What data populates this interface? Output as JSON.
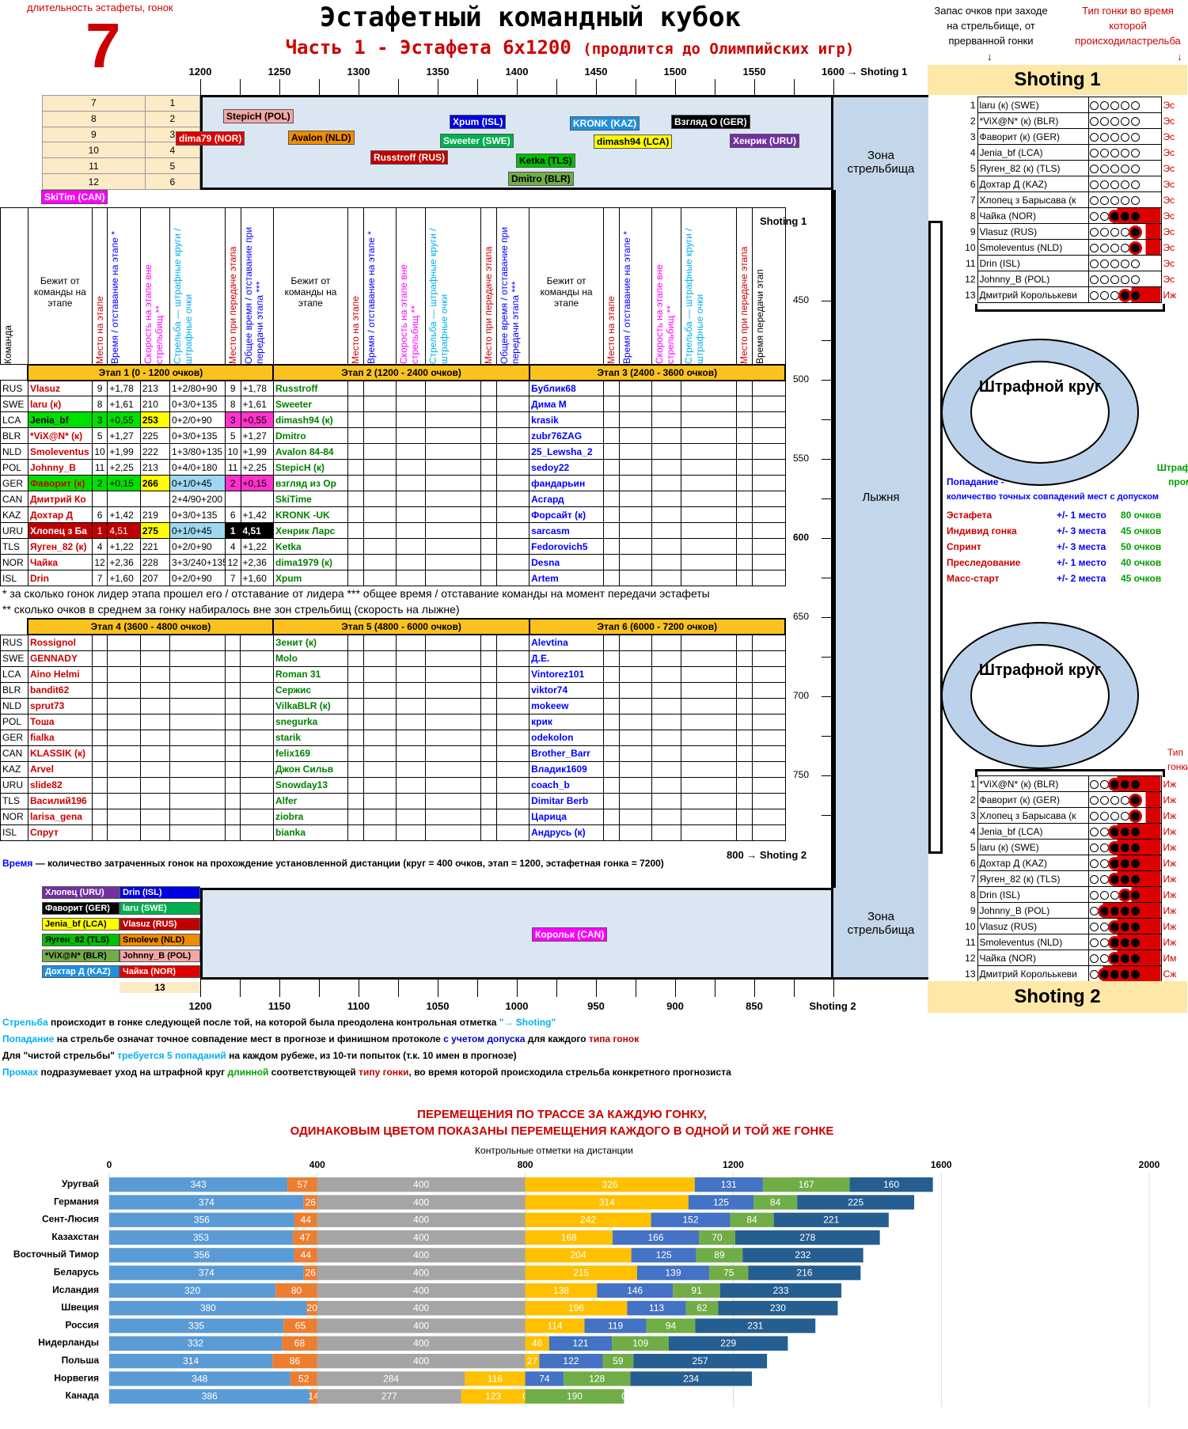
{
  "header": {
    "left_caption": "длительность эстафеты, гонок",
    "big_number": "7",
    "title": "Эстафетный командный кубок",
    "subtitle": "Часть 1 - Эстафета 6х1200",
    "subtitle_note": "(продлится до Олимпийских игр)",
    "right1": "Запас очков при заходе на стрельбище, от прерванной гонки",
    "right2": "Тип гонки во время которой происходиластрельба"
  },
  "top_scale": [
    "1200",
    "1250",
    "1300",
    "1350",
    "1400",
    "1450",
    "1500",
    "1550",
    "1600 → Shoting 1"
  ],
  "bot_scale": [
    "1200",
    "1150",
    "1100",
    "1050",
    "1000",
    "950",
    "900",
    "850",
    "Shoting 2"
  ],
  "left_grid_top": [
    [
      "7",
      "1"
    ],
    [
      "8",
      "2"
    ],
    [
      "9",
      "3"
    ],
    [
      "10",
      "4"
    ],
    [
      "11",
      "5"
    ],
    [
      "12",
      "6"
    ]
  ],
  "top_tags": [
    {
      "t": "StepicH (POL)",
      "bg": "#f4a6a6",
      "c": "#000"
    },
    {
      "t": "dima79 (NOR)",
      "bg": "#e00000",
      "c": "#fff"
    },
    {
      "t": "Avalon (NLD)",
      "bg": "#f08c00",
      "c": "#000"
    },
    {
      "t": "Russtroff (RUS)",
      "bg": "#c00000",
      "c": "#fff"
    },
    {
      "t": "Xpum (ISL)",
      "bg": "#0000e0",
      "c": "#fff"
    },
    {
      "t": "Sweeter (SWE)",
      "bg": "#00b050",
      "c": "#fff"
    },
    {
      "t": "KRONK (KAZ)",
      "bg": "#1e90e0",
      "c": "#fff"
    },
    {
      "t": "Ketka (TLS)",
      "bg": "#00c000",
      "c": "#000"
    },
    {
      "t": "dimash94 (LCA)",
      "bg": "#ffff00",
      "c": "#000"
    },
    {
      "t": "Dmitro (BLR)",
      "bg": "#70ad47",
      "c": "#000"
    },
    {
      "t": "Взгляд О (GER)",
      "bg": "#000",
      "c": "#fff"
    },
    {
      "t": "Хенрик (URU)",
      "bg": "#7030a0",
      "c": "#fff"
    },
    {
      "t": "SkiTim (CAN)",
      "bg": "#ff00ff",
      "c": "#fff"
    }
  ],
  "zone_labels": {
    "top": "Зона стрельбища",
    "mid": "Лыжня",
    "bot": "Зона стрельбища",
    "shoting1": "Shoting 1",
    "shoting2": "800 → Shoting 2"
  },
  "col_headers": {
    "team": "Команда",
    "runner": "Бежит от команды на этапе",
    "place": "Место на этапе",
    "time": "Время / отставание на этапе *",
    "speed": "Скорость на этапе вне стрельбищ **",
    "shoot": "Стрельба — штрафные круги / штрафные очки",
    "place_pass": "Место при передаче этапа",
    "total": "Общее время / отставание при передачи этапа ***",
    "total2": "Время передачи этап"
  },
  "stages": [
    "Этап 1  (0 - 1200 очков)",
    "Этап 2  (1200 - 2400 очков)",
    "Этап 3  (2400 - 3600 очков)",
    "Этап 4  (3600 - 4800 очков)",
    "Этап 5  (4800 - 6000 очков)",
    "Этап 6  (6000 - 7200 очков)"
  ],
  "teams": [
    "RUS",
    "SWE",
    "LCA",
    "BLR",
    "NLD",
    "POL",
    "GER",
    "CAN",
    "KAZ",
    "URU",
    "TLS",
    "NOR",
    "ISL"
  ],
  "stage1": [
    [
      "Vlasuz",
      "9",
      "+1,78",
      "213",
      "1+2/80+90",
      "9",
      "+1,78"
    ],
    [
      "laru (к)",
      "8",
      "+1,61",
      "210",
      "0+3/0+135",
      "8",
      "+1,61"
    ],
    [
      "Jenia_bf",
      "3",
      "+0,55",
      "253",
      "0+2/0+90",
      "3",
      "+0,55"
    ],
    [
      "*ViX@N* (к)",
      "5",
      "+1,27",
      "225",
      "0+3/0+135",
      "5",
      "+1,27"
    ],
    [
      "Smoleventus",
      "10",
      "+1,99",
      "222",
      "1+3/80+135",
      "10",
      "+1,99"
    ],
    [
      "Johnny_B",
      "11",
      "+2,25",
      "213",
      "0+4/0+180",
      "11",
      "+2,25"
    ],
    [
      "Фаворит (к)",
      "2",
      "+0,15",
      "266",
      "0+1/0+45",
      "2",
      "+0,15"
    ],
    [
      "Дмитрий Ко",
      "",
      "",
      "",
      "2+4/90+200",
      "",
      ""
    ],
    [
      "Дохтар Д",
      "6",
      "+1,42",
      "219",
      "0+3/0+135",
      "6",
      "+1,42"
    ],
    [
      "Хлопец з Ба",
      "1",
      "4,51",
      "275",
      "0+1/0+45",
      "1",
      "4,51"
    ],
    [
      "Яуген_82 (к)",
      "4",
      "+1,22",
      "221",
      "0+2/0+90",
      "4",
      "+1,22"
    ],
    [
      "Чайка",
      "12",
      "+2,36",
      "228",
      "3+3/240+135",
      "12",
      "+2,36"
    ],
    [
      "Drin",
      "7",
      "+1,60",
      "207",
      "0+2/0+90",
      "7",
      "+1,60"
    ]
  ],
  "stage2": [
    "Russtroff",
    "Sweeter",
    "dimash94 (к)",
    "Dmitro",
    "Avalon 84-84",
    "StepicH (к)",
    "взгляд из Ор",
    "SkiTime",
    "KRONK -UK",
    "Хенрик Ларс",
    "Ketka",
    "dima1979 (к)",
    "Xpum"
  ],
  "stage3": [
    "Бублик68",
    "Дима М",
    "krasik",
    "zubr76ZAG",
    "25_Lewsha_2",
    "sedoy22",
    "фандарьин",
    "Асгард",
    "Форсайт (к)",
    "sarcasm",
    "Fedorovich5",
    "Desna",
    "Artem"
  ],
  "stage4": [
    "Rossignol",
    "GENNADY",
    "Aino Helmi",
    "bandit62",
    "sprut73",
    "Тоша",
    "fialka",
    "KLASSIK (к)",
    "Arvel",
    "slide82",
    "Василий196",
    "larisa_gena",
    "Спрут"
  ],
  "stage5": [
    "Зенит (к)",
    "Molo",
    "Roman 31",
    "Сержис",
    "VilkaBLR (к)",
    "snegurka",
    "starik",
    "felix169",
    "Джон Сильв",
    "Snowday13",
    "Alfer",
    "ziobra",
    "bianka"
  ],
  "stage6": [
    "Alevtina",
    "Д.Е.",
    "Vintorez101",
    "viktor74",
    "mokeew",
    "крик",
    "odekolon",
    "Brother_Barr",
    "Владик1609",
    "coach_b",
    "Dimitar Berb",
    "Царица",
    "Андрусь (к)"
  ],
  "footnote1": "* за сколько гонок лидер этапа прошел его / отставание от лидера *** общее время / отставание команды на момент передачи эстафеты",
  "footnote2": "** сколько очков в среднем за гонку набиралось вне зон стрельбищ (скорость на лыжне)",
  "time_note_label": "Время",
  "time_note": " — количество затраченных гонок на прохождение установленной дистанции (круг = 400 очков, этап = 1200, эстафетная гонка = 7200)",
  "bot_tags_left": [
    {
      "a": "Хлопец (URU)",
      "abg": "#7030a0",
      "ac": "#fff",
      "b": "Drin (ISL)",
      "bbg": "#0000e0",
      "bc": "#fff"
    },
    {
      "a": "Фаворит (GER)",
      "abg": "#000",
      "ac": "#fff",
      "b": "laru (SWE)",
      "bbg": "#00b050",
      "bc": "#fff"
    },
    {
      "a": "Jenia_bf (LCA)",
      "abg": "#ffff00",
      "ac": "#000",
      "b": "Vlasuz (RUS)",
      "bbg": "#c00000",
      "bc": "#fff"
    },
    {
      "a": "Яуген_82 (TLS)",
      "abg": "#00c000",
      "ac": "#000",
      "b": "Smoleve (NLD)",
      "bbg": "#f08c00",
      "bc": "#000"
    },
    {
      "a": "*ViX@N* (BLR)",
      "abg": "#70ad47",
      "ac": "#000",
      "b": "Johnny_B (POL)",
      "bbg": "#f4a6a6",
      "bc": "#000"
    },
    {
      "a": "Дохтар Д (KAZ)",
      "abg": "#1e90e0",
      "ac": "#fff",
      "b": "Чайка (NOR)",
      "bbg": "#e00000",
      "bc": "#fff"
    }
  ],
  "bot_tag_num": "13",
  "bot_tag_can": "Корольк (CAN)",
  "shot1_title": "Shoting 1",
  "shot2_title": "Shoting 2",
  "shot1_rows": [
    {
      "n": "1",
      "name": "laru (к) (SWE)",
      "d": "00000",
      "r": "",
      "t": "Эс"
    },
    {
      "n": "2",
      "name": "*ViX@N* (к) (BLR)",
      "d": "00000",
      "r": "",
      "t": "Эс"
    },
    {
      "n": "3",
      "name": "Фаворит (к) (GER)",
      "d": "00000",
      "r": "",
      "t": "Эс"
    },
    {
      "n": "4",
      "name": "Jenia_bf (LCA)",
      "d": "00000",
      "r": "",
      "t": "Эс"
    },
    {
      "n": "5",
      "name": "Яуген_82 (к) (TLS)",
      "d": "00000",
      "r": "",
      "t": "Эс"
    },
    {
      "n": "6",
      "name": "Дохтар Д (KAZ)",
      "d": "00000",
      "r": "",
      "t": "Эс"
    },
    {
      "n": "7",
      "name": "Хлопец з Барысава (к",
      "d": "00000",
      "r": "",
      "t": "Эс"
    },
    {
      "n": "8",
      "name": "Чайка (NOR)",
      "d": "00111",
      "r": "234",
      "t": "Эс"
    },
    {
      "n": "9",
      "name": "Vlasuz (RUS)",
      "d": "00001",
      "r": "4",
      "t": "Эс"
    },
    {
      "n": "10",
      "name": "Smoleventus (NLD)",
      "d": "00001",
      "r": "4",
      "t": "Эс"
    },
    {
      "n": "11",
      "name": "Drin (ISL)",
      "d": "00000",
      "r": "",
      "t": "Эс"
    },
    {
      "n": "12",
      "name": "Johnny_B (POL)",
      "d": "00000",
      "r": "",
      "t": "Эс"
    },
    {
      "n": "13",
      "name": "Дмитрий Корольькеви",
      "d": "00011",
      "r": "34",
      "t": "Иж"
    }
  ],
  "shot2_tip": "Тип гонки",
  "shot2_rows": [
    {
      "n": "1",
      "name": "*ViX@N* (к) (BLR)",
      "d": "00111",
      "r": "234",
      "t": "Иж"
    },
    {
      "n": "2",
      "name": "Фаворит (к) (GER)",
      "d": "00001",
      "r": "4",
      "t": "Иж"
    },
    {
      "n": "3",
      "name": "Хлопец з Барысава (к",
      "d": "00001",
      "r": "4",
      "t": "Иж"
    },
    {
      "n": "4",
      "name": "Jenia_bf (LCA)",
      "d": "00111",
      "r": "234",
      "t": "Иж"
    },
    {
      "n": "5",
      "name": "laru (к) (SWE)",
      "d": "00111",
      "r": "34",
      "t": "Иж"
    },
    {
      "n": "6",
      "name": "Дохтар Д (KAZ)",
      "d": "00111",
      "r": "34",
      "t": "Иж"
    },
    {
      "n": "7",
      "name": "Яуген_82 (к) (TLS)",
      "d": "00111",
      "r": "34",
      "t": "Иж"
    },
    {
      "n": "8",
      "name": "Drin (ISL)",
      "d": "00011",
      "r": "4",
      "t": "Иж"
    },
    {
      "n": "9",
      "name": "Johnny_B (POL)",
      "d": "01111",
      "r": "1234",
      "t": "Иж"
    },
    {
      "n": "10",
      "name": "Vlasuz (RUS)",
      "d": "00111",
      "r": "234",
      "t": "Иж"
    },
    {
      "n": "11",
      "name": "Smoleventus (NLD)",
      "d": "00111",
      "r": "234",
      "t": "Иж"
    },
    {
      "n": "12",
      "name": "Чайка (NOR)",
      "d": "00111",
      "r": "234",
      "t": "Им"
    },
    {
      "n": "13",
      "name": "Дмитрий Корольькеви",
      "d": "01111",
      "r": "1234",
      "t": "Сж"
    }
  ],
  "ring_label": "Штрафной круг",
  "penalty": {
    "hit_title": "Попадание -",
    "hit_sub": "количество точных совпадений мест с допуском",
    "miss_title": "Штраф за промах",
    "rows": [
      [
        "Эстафета",
        "+/- 1 место",
        "80 очков"
      ],
      [
        "Индивид гонка",
        "+/- 3 места",
        "45 очков"
      ],
      [
        "Спринт",
        "+/- 3 места",
        "50 очков"
      ],
      [
        "Преследование",
        "+/- 1 место",
        "40 очков"
      ],
      [
        "Масс-старт",
        "+/- 2 места",
        "45 очков"
      ]
    ]
  },
  "notes": [
    [
      {
        "t": "Стрельба",
        "c": "#00b0f0"
      },
      {
        "t": " происходит в гонке следующей после той, на которой была преодолена контрольная отметка ",
        "c": "#000"
      },
      {
        "t": "\"→ Shoting\"",
        "c": "#00b0f0"
      }
    ],
    [
      {
        "t": "Попадание",
        "c": "#00b0f0"
      },
      {
        "t": " на стрельбе означат точное совпадение мест в прогнозе и финишном протоколе ",
        "c": "#000"
      },
      {
        "t": "с учетом допуска",
        "c": "#0000c0"
      },
      {
        "t": " для каждого ",
        "c": "#000"
      },
      {
        "t": "типа гонок",
        "c": "#c00000"
      }
    ],
    [
      {
        "t": "Для \"чистой стрельбы\" ",
        "c": "#000"
      },
      {
        "t": "требуется 5 попаданий",
        "c": "#00b0f0"
      },
      {
        "t": " на каждом рубеже, из 10-ти попыток (т.к. 10 имен в прогнозе)",
        "c": "#000"
      }
    ],
    [
      {
        "t": "Промах",
        "c": "#00b0f0"
      },
      {
        "t": " подразумевает уход на штрафной круг ",
        "c": "#000"
      },
      {
        "t": "длинной",
        "c": "#00a000"
      },
      {
        "t": " соответствующей ",
        "c": "#000"
      },
      {
        "t": "типу гонки",
        "c": "#c00000"
      },
      {
        "t": ", во время которой происходила стрельба конкретного прогнозиста",
        "c": "#000"
      }
    ]
  ],
  "chart_data": {
    "type": "bar",
    "title": "ПЕРЕМЕЩЕНИЯ ПО ТРАССЕ ЗА КАЖДУЮ ГОНКУ,",
    "subtitle": "ОДИНАКОВЫМ ЦВЕТОМ ПОКАЗАНЫ ПЕРЕМЕЩЕНИЯ КАЖДОГО В ОДНОЙ И ТОЙ ЖЕ ГОНКЕ",
    "xlabel": "Контрольные отметки на дистанции",
    "xlim": [
      0,
      2000
    ],
    "xticks": [
      "0",
      "400",
      "800",
      "1200",
      "1600",
      "2000"
    ],
    "orientation": "horizontal",
    "stacked": true,
    "colors": [
      "#5b9bd5",
      "#ed7d31",
      "#a5a5a5",
      "#ffc000",
      "#4472c4",
      "#70ad47",
      "#255e91"
    ],
    "categories": [
      "Уругвай",
      "Германия",
      "Сент-Люсия",
      "Казахстан",
      "Восточный Тимор",
      "Беларусь",
      "Исландия",
      "Швеция",
      "Россия",
      "Нидерланды",
      "Польша",
      "Норвегия",
      "Канада"
    ],
    "rows": [
      [
        343,
        57,
        400,
        326,
        131,
        167,
        160
      ],
      [
        374,
        26,
        400,
        314,
        125,
        84,
        225
      ],
      [
        356,
        44,
        400,
        242,
        152,
        84,
        221
      ],
      [
        353,
        47,
        400,
        168,
        166,
        70,
        278
      ],
      [
        356,
        44,
        400,
        204,
        125,
        89,
        232
      ],
      [
        374,
        26,
        400,
        215,
        139,
        75,
        216
      ],
      [
        320,
        80,
        400,
        138,
        146,
        91,
        233
      ],
      [
        380,
        20,
        400,
        196,
        113,
        62,
        230
      ],
      [
        335,
        65,
        400,
        114,
        119,
        94,
        231
      ],
      [
        332,
        68,
        400,
        46,
        121,
        109,
        229
      ],
      [
        314,
        86,
        400,
        27,
        122,
        59,
        257
      ],
      [
        348,
        52,
        284,
        116,
        74,
        128,
        234
      ],
      [
        386,
        14,
        277,
        123,
        0,
        190,
        0
      ]
    ]
  }
}
